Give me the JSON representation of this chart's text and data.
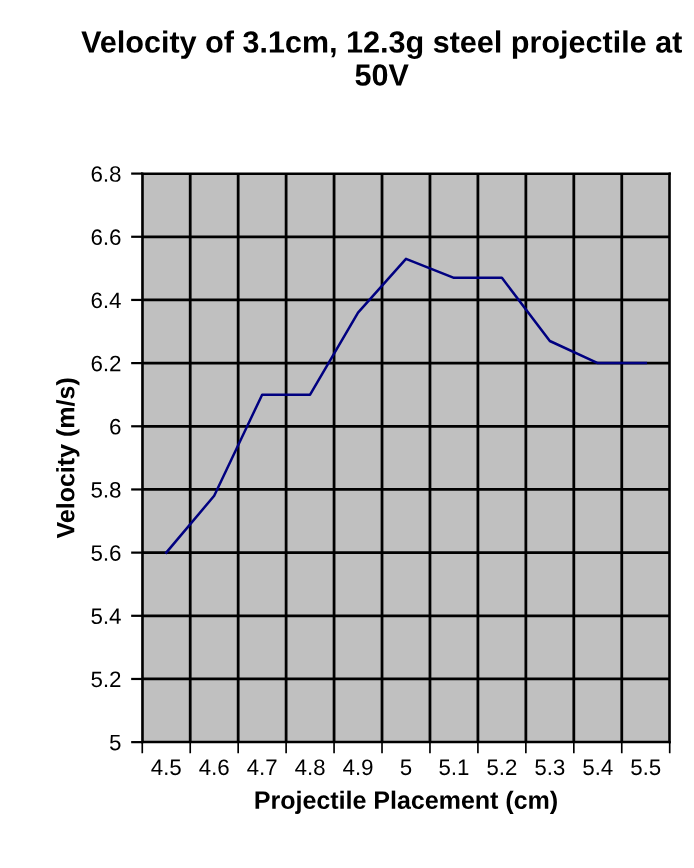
{
  "chart_data": {
    "type": "line",
    "title": "Velocity of 3.1cm, 12.3g steel projectile at 50V",
    "xlabel": "Projectile Placement (cm)",
    "ylabel": "Velocity (m/s)",
    "categories": [
      "4.5",
      "4.6",
      "4.7",
      "4.8",
      "4.9",
      "5",
      "5.1",
      "5.2",
      "5.3",
      "5.4",
      "5.5"
    ],
    "series": [
      {
        "color": "#000080",
        "values": [
          5.6,
          5.78,
          6.1,
          6.1,
          6.36,
          6.53,
          6.47,
          6.47,
          6.27,
          6.2,
          6.2
        ]
      }
    ],
    "ylim": [
      5,
      6.8
    ],
    "yticks": [
      5,
      5.2,
      5.4,
      5.6,
      5.8,
      6,
      6.2,
      6.4,
      6.6,
      6.8
    ],
    "grid": true,
    "marker": "none",
    "line_style": "solid"
  }
}
